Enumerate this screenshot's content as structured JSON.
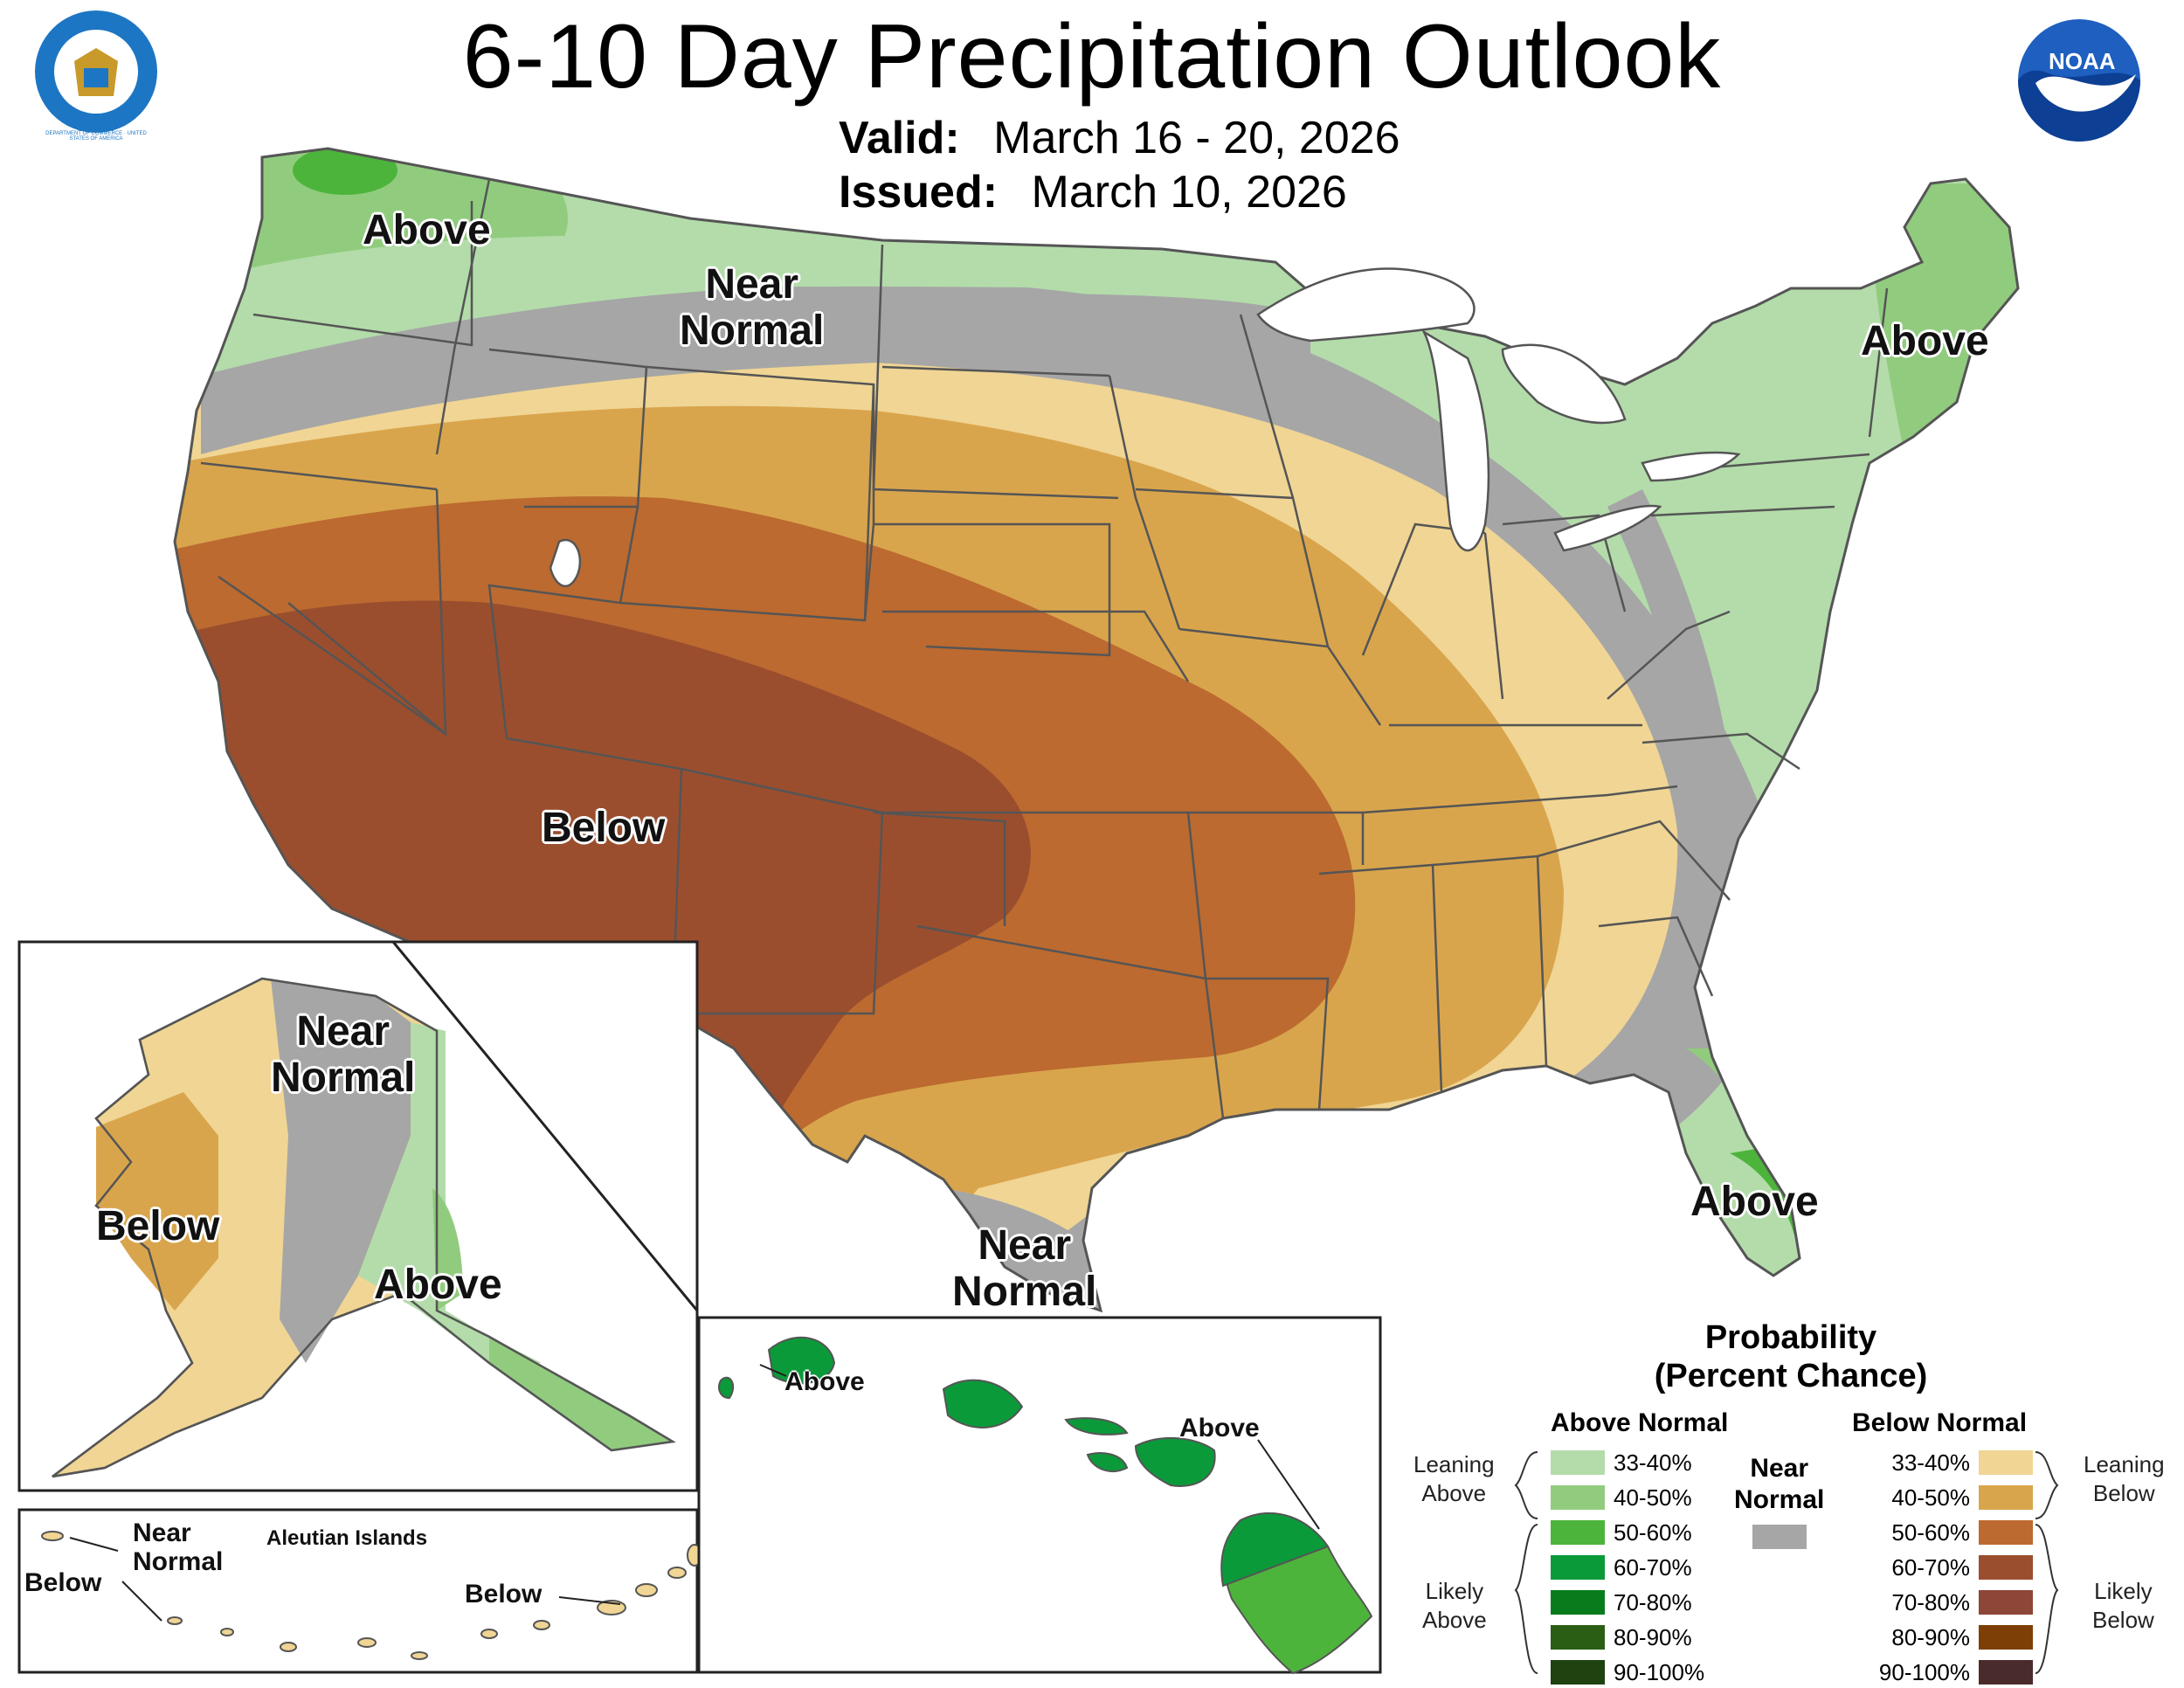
{
  "header": {
    "title": "6-10 Day Precipitation Outlook",
    "valid_label": "Valid:",
    "valid_value": "March 16 - 20, 2026",
    "issued_label": "Issued:",
    "issued_value": "March 10, 2026"
  },
  "logos": {
    "left": "dept-of-commerce-seal",
    "left_text": "DEPARTMENT OF COMMERCE · UNITED STATES OF AMERICA",
    "right": "noaa-logo",
    "right_text": "NOAA"
  },
  "regions": {
    "pacific_nw": "Above",
    "north_plains": "Near\nNormal",
    "southwest": "Below",
    "northeast": "Above",
    "florida": "Above",
    "south_texas": "Near\nNormal",
    "alaska_west": "Below",
    "alaska_central": "Near\nNormal",
    "alaska_southeast": "Above",
    "aleutian_title": "Aleutian Islands",
    "aleutian_west": "Below",
    "aleutian_near": "Near\nNormal",
    "aleutian_east": "Below",
    "hawaii_west": "Above",
    "hawaii_east": "Above"
  },
  "legend": {
    "title_line1": "Probability",
    "title_line2": "(Percent Chance)",
    "above_header": "Above Normal",
    "below_header": "Below Normal",
    "near_label": "Near\nNormal",
    "near_color": "#a6a6a6",
    "leaning_above": "Leaning\nAbove",
    "likely_above": "Likely\nAbove",
    "leaning_below": "Leaning\nBelow",
    "likely_below": "Likely\nBelow",
    "above": [
      {
        "label": "33-40%",
        "color": "#b3dcaa"
      },
      {
        "label": "40-50%",
        "color": "#91cc7e"
      },
      {
        "label": "50-60%",
        "color": "#4db43b"
      },
      {
        "label": "60-70%",
        "color": "#0b9a3a"
      },
      {
        "label": "70-80%",
        "color": "#087c1c"
      },
      {
        "label": "80-90%",
        "color": "#2a5e14"
      },
      {
        "label": "90-100%",
        "color": "#1e4210"
      }
    ],
    "below": [
      {
        "label": "33-40%",
        "color": "#f0d594"
      },
      {
        "label": "40-50%",
        "color": "#d9a54c"
      },
      {
        "label": "50-60%",
        "color": "#bc6a30"
      },
      {
        "label": "60-70%",
        "color": "#9a4e2e"
      },
      {
        "label": "70-80%",
        "color": "#8e4638"
      },
      {
        "label": "80-90%",
        "color": "#7d3f05"
      },
      {
        "label": "90-100%",
        "color": "#4a2b2c"
      }
    ]
  }
}
